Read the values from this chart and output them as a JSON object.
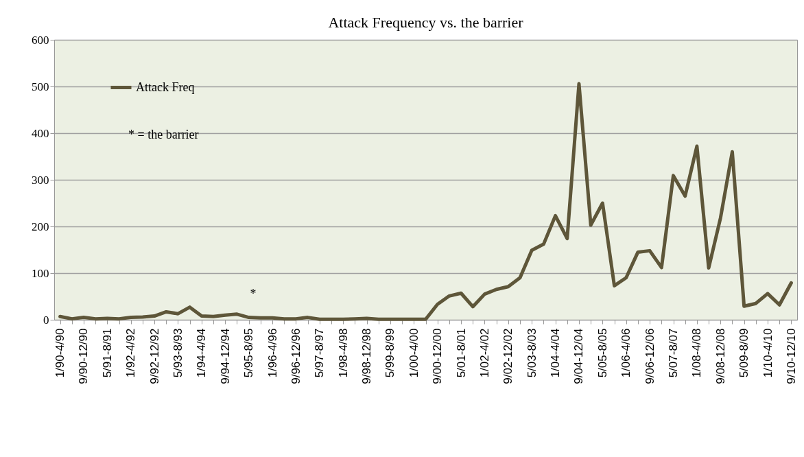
{
  "chart_data": {
    "type": "line",
    "title": "Attack Frequency vs. the barrier",
    "categories": [
      "1/90-4/90",
      null,
      "9/90-12/90",
      null,
      "5/91-8/91",
      null,
      "1/92-4/92",
      null,
      "9/92-12/92",
      null,
      "5/93-8/93",
      null,
      "1/94-4/94",
      null,
      "9/94-12/94",
      null,
      "5/95-8/95",
      null,
      "1/96-4/96",
      null,
      "9/96-12/96",
      null,
      "5/97-8/97",
      null,
      "1/98-4/98",
      null,
      "9/98-12/98",
      null,
      "5/99-8/99",
      null,
      "1/00-4/00",
      null,
      "9/00-12/00",
      null,
      "5/01-8/01",
      null,
      "1/02-4/02",
      null,
      "9/02-12/02",
      null,
      "5/03-8/03",
      null,
      "1/04-4/04",
      null,
      "9/04-12/04",
      null,
      "5/05-8/05",
      null,
      "1/06-4/06",
      null,
      "9/06-12/06",
      null,
      "5/07-8/07",
      null,
      "1/08-4/08",
      null,
      "9/08-12/08",
      null,
      "5/09-8/09",
      null,
      "1/10-4/10",
      null,
      "9/10-12/10"
    ],
    "series": [
      {
        "name": "Attack Freq",
        "color": "#5e5639",
        "values": [
          7,
          2,
          5,
          2,
          3,
          2,
          5,
          6,
          8,
          17,
          13,
          27,
          8,
          7,
          10,
          12,
          5,
          4,
          4,
          2,
          2,
          5,
          1,
          1,
          1,
          2,
          3,
          1,
          1,
          1,
          1,
          1,
          33,
          51,
          57,
          28,
          55,
          65,
          71,
          90,
          149,
          162,
          223,
          174,
          506,
          203,
          250,
          73,
          90,
          145,
          148,
          112,
          309,
          265,
          372,
          111,
          218,
          360,
          29,
          35,
          56,
          32,
          79
        ]
      }
    ],
    "ylim": [
      0,
      600
    ],
    "yticks": [
      0,
      100,
      200,
      300,
      400,
      500,
      600
    ],
    "grid": "y",
    "legend": "top left",
    "annotations": [
      "* = the barrier",
      "*"
    ]
  }
}
